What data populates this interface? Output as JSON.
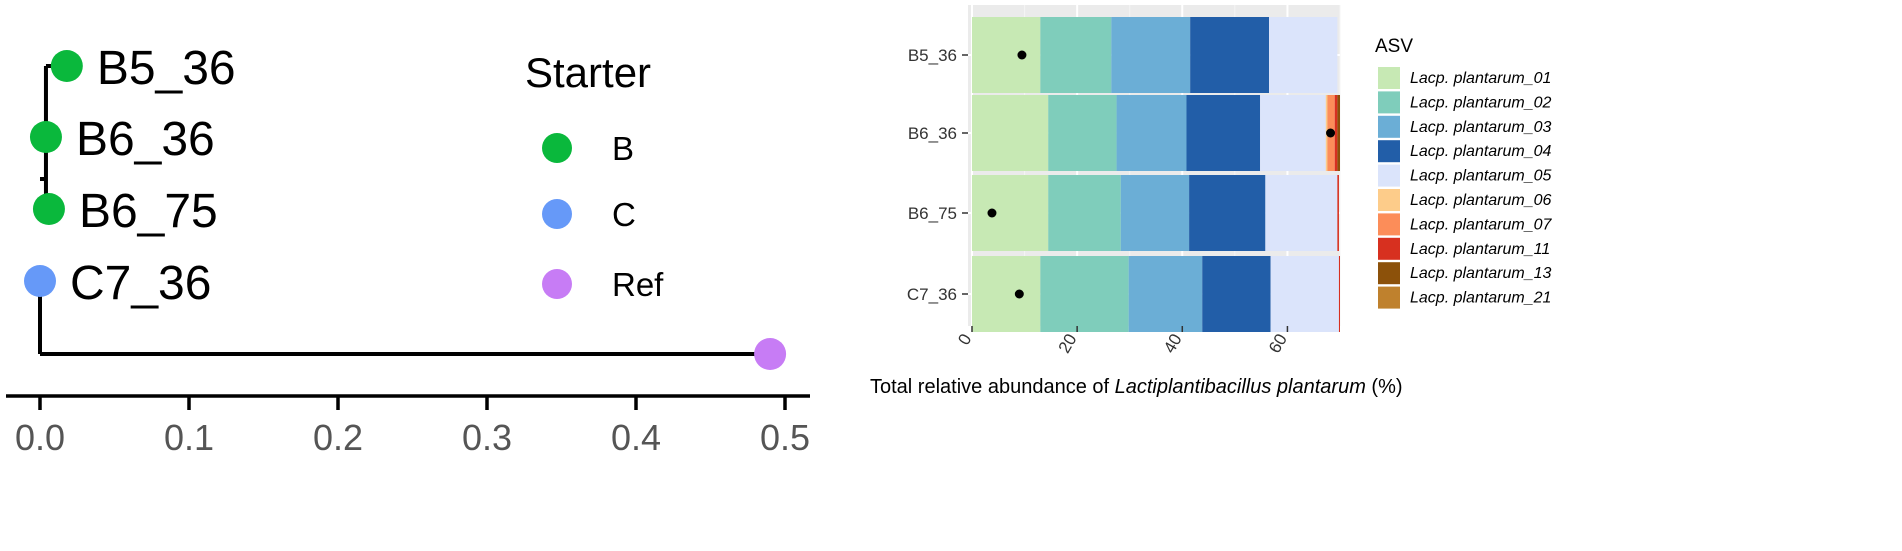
{
  "chart_data": [
    {
      "type": "scatter",
      "panel": "tree",
      "tips": [
        {
          "label": "B5_36",
          "x": 0.018,
          "group": "B"
        },
        {
          "label": "B6_36",
          "x": 0.004,
          "group": "B"
        },
        {
          "label": "B6_75",
          "x": 0.006,
          "group": "B"
        },
        {
          "label": "C7_36",
          "x": 0.0,
          "group": "C"
        },
        {
          "label": "",
          "x": 0.49,
          "group": "Ref"
        }
      ],
      "xlim": [
        0,
        0.5
      ],
      "x_ticks": [
        "0.0",
        "0.1",
        "0.2",
        "0.3",
        "0.4",
        "0.5"
      ],
      "x_tick_values": [
        0,
        0.1,
        0.2,
        0.3,
        0.4,
        0.5
      ],
      "legend": {
        "title": "Starter",
        "entries": [
          {
            "label": "B",
            "color": "#0ab83c"
          },
          {
            "label": "C",
            "color": "#6699f8"
          },
          {
            "label": "Ref",
            "color": "#c77cf5"
          }
        ]
      }
    },
    {
      "type": "bar",
      "panel": "abundance",
      "orientation": "horizontal",
      "stacked": true,
      "categories": [
        "B5_36",
        "B6_36",
        "B6_75",
        "C7_36"
      ],
      "xlabel_prefix": "Total relative abundance of ",
      "xlabel_italic": "Lactiplantibacillus plantarum",
      "xlabel_suffix": " (%)",
      "xlim": [
        0,
        70
      ],
      "x_ticks": [
        "0",
        "20",
        "40",
        "60"
      ],
      "x_tick_values": [
        0,
        20,
        40,
        60
      ],
      "grid": true,
      "legend_title": "ASV",
      "legend_position": "right",
      "series": [
        {
          "name": "Lacp. plantarum_01",
          "color": "#c7e9b4",
          "values": [
            13.0,
            14.5,
            14.5,
            13.0
          ]
        },
        {
          "name": "Lacp. plantarum_02",
          "color": "#7fcdbb",
          "values": [
            13.5,
            13.0,
            13.8,
            16.8
          ]
        },
        {
          "name": "Lacp. plantarum_03",
          "color": "#6baed6",
          "values": [
            15.0,
            13.3,
            13.0,
            14.0
          ]
        },
        {
          "name": "Lacp. plantarum_04",
          "color": "#225ea8",
          "values": [
            15.0,
            14.0,
            14.5,
            13.0
          ]
        },
        {
          "name": "Lacp. plantarum_05",
          "color": "#dbe4fb",
          "values": [
            13.0,
            12.5,
            13.7,
            13.0
          ]
        },
        {
          "name": "Lacp. plantarum_06",
          "color": "#fdcc8a",
          "values": [
            0,
            0.3,
            0,
            0
          ]
        },
        {
          "name": "Lacp. plantarum_07",
          "color": "#fc8d59",
          "values": [
            0,
            1.4,
            0,
            0
          ]
        },
        {
          "name": "Lacp. plantarum_11",
          "color": "#d7301f",
          "values": [
            0,
            0.5,
            0.3,
            0.2
          ]
        },
        {
          "name": "Lacp. plantarum_13",
          "color": "#8c510a",
          "values": [
            0,
            0.5,
            0,
            0
          ]
        },
        {
          "name": "Lacp. plantarum_21",
          "color": "#bf812d",
          "values": [
            0,
            0,
            0,
            0
          ]
        }
      ],
      "points": [
        9.5,
        68.2,
        3.8,
        9.0
      ]
    }
  ]
}
